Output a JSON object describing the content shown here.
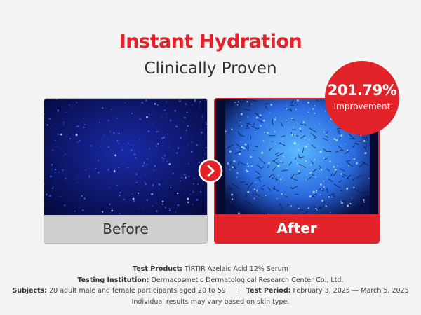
{
  "header": {
    "title": "Instant Hydration",
    "subtitle": "Clinically Proven"
  },
  "badge": {
    "value": "201.79%",
    "label": "Improvement"
  },
  "panels": {
    "before": "Before",
    "after": "After"
  },
  "footer": {
    "lines": [
      [
        {
          "label": "Test Product:",
          "text": "TIRTIR Azelaic Acid 12% Serum"
        }
      ],
      [
        {
          "label": "Testing Institution:",
          "text": "Dermacosmetic Dermatological Research Center Co., Ltd."
        }
      ],
      [
        {
          "label": "Subjects:",
          "text": "20 adult male and female participants aged 20 to 59"
        },
        {
          "label": "Test Period:",
          "text": "February 3, 2025 — March 5, 2025"
        }
      ]
    ],
    "note": "Individual results may vary based on skin type."
  }
}
